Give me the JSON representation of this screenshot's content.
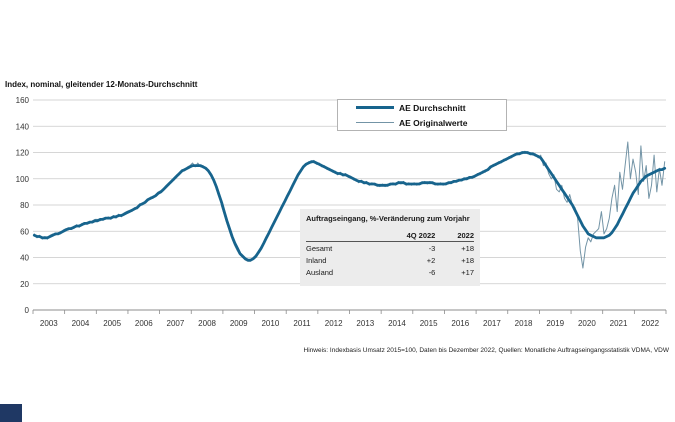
{
  "title": "Index, nominal, gleitender 12-Monats-Durchschnitt",
  "legend": [
    {
      "label": "AE Durchschnitt"
    },
    {
      "label": "AE Originalwerte"
    }
  ],
  "table": {
    "title": "Auftragseingang, %-Veränderung zum Vorjahr",
    "columns": [
      "",
      "4Q 2022",
      "2022"
    ],
    "rows": [
      [
        "Gesamt",
        "-3",
        "+18"
      ],
      [
        "Inland",
        "+2",
        "+18"
      ],
      [
        "Ausland",
        "-6",
        "+17"
      ]
    ]
  },
  "footer": "Hinweis: Indexbasis Umsatz 2015=100, Daten bis Dezember 2022, Quellen: Monatliche Auftragseingangsstatistik VDMA, VDW",
  "colors": {
    "avg": "#17648d",
    "orig": "#7394a6",
    "grid": "#c9c9c9",
    "axis": "#8c8c8c",
    "table_bg": "#ececec",
    "corner": "#1f3864"
  },
  "chart_data": {
    "type": "line",
    "title": "Index, nominal, gleitender 12-Monats-Durchschnitt",
    "ylim": [
      0,
      160
    ],
    "ytick_step": 20,
    "grid": true,
    "legend_position": "top-center",
    "x_years": [
      2003,
      2004,
      2005,
      2006,
      2007,
      2008,
      2009,
      2010,
      2011,
      2012,
      2013,
      2014,
      2015,
      2016,
      2017,
      2018,
      2019,
      2020,
      2021,
      2022
    ],
    "series": [
      {
        "name": "AE Durchschnitt",
        "monthly": [
          57,
          56,
          56,
          55,
          55,
          55,
          56,
          57,
          58,
          58,
          59,
          60,
          61,
          62,
          62,
          63,
          64,
          64,
          65,
          66,
          66,
          67,
          67,
          68,
          68,
          69,
          69,
          70,
          70,
          70,
          71,
          71,
          72,
          72,
          73,
          74,
          75,
          76,
          77,
          78,
          80,
          81,
          82,
          84,
          85,
          86,
          87,
          89,
          90,
          92,
          94,
          96,
          98,
          100,
          102,
          104,
          106,
          107,
          108,
          109,
          110,
          110,
          110,
          110,
          109,
          108,
          106,
          103,
          99,
          94,
          88,
          82,
          75,
          68,
          62,
          56,
          51,
          47,
          43,
          41,
          39,
          38,
          38,
          39,
          41,
          44,
          47,
          51,
          55,
          59,
          63,
          67,
          71,
          75,
          79,
          83,
          87,
          91,
          95,
          99,
          103,
          106,
          109,
          111,
          112,
          113,
          113,
          112,
          111,
          110,
          109,
          108,
          107,
          106,
          105,
          104,
          104,
          103,
          103,
          102,
          101,
          100,
          99,
          98,
          98,
          97,
          97,
          96,
          96,
          96,
          95,
          95,
          95,
          95,
          95,
          96,
          96,
          96,
          97,
          97,
          97,
          96,
          96,
          96,
          96,
          96,
          96,
          97,
          97,
          97,
          97,
          97,
          96,
          96,
          96,
          96,
          96,
          97,
          97,
          98,
          98,
          99,
          99,
          100,
          100,
          101,
          101,
          102,
          103,
          104,
          105,
          106,
          107,
          109,
          110,
          111,
          112,
          113,
          114,
          115,
          116,
          117,
          118,
          119,
          119,
          120,
          120,
          120,
          119,
          119,
          118,
          117,
          116,
          113,
          110,
          107,
          104,
          101,
          98,
          95,
          92,
          89,
          86,
          83,
          80,
          76,
          72,
          68,
          64,
          61,
          58,
          57,
          56,
          55,
          55,
          55,
          55,
          56,
          57,
          59,
          62,
          65,
          69,
          73,
          77,
          81,
          85,
          89,
          92,
          95,
          98,
          100,
          102,
          103,
          104,
          105,
          106,
          107,
          107,
          108
        ]
      },
      {
        "name": "AE Originalwerte",
        "monthly": [
          58,
          55,
          57,
          54,
          56,
          54,
          57,
          58,
          57,
          59,
          58,
          61,
          62,
          61,
          63,
          62,
          65,
          63,
          66,
          65,
          67,
          66,
          68,
          69,
          69,
          68,
          70,
          69,
          71,
          69,
          72,
          70,
          73,
          71,
          74,
          75,
          76,
          75,
          78,
          77,
          81,
          80,
          83,
          83,
          86,
          85,
          88,
          90,
          91,
          91,
          95,
          95,
          99,
          99,
          103,
          103,
          107,
          106,
          109,
          110,
          112,
          109,
          112,
          109,
          110,
          107,
          107,
          102,
          100,
          92,
          89,
          79,
          73,
          66,
          60,
          54,
          49,
          45,
          42,
          40,
          38,
          37,
          37,
          40,
          42,
          43,
          48,
          50,
          56,
          58,
          64,
          66,
          72,
          74,
          80,
          84,
          88,
          90,
          96,
          98,
          104,
          105,
          110,
          110,
          113,
          112,
          114,
          111,
          112,
          109,
          110,
          107,
          108,
          105,
          106,
          103,
          105,
          102,
          104,
          101,
          102,
          99,
          100,
          97,
          99,
          96,
          98,
          95,
          97,
          95,
          96,
          94,
          96,
          94,
          96,
          95,
          97,
          95,
          98,
          96,
          98,
          95,
          97,
          95,
          97,
          95,
          97,
          96,
          98,
          96,
          98,
          96,
          97,
          95,
          97,
          95,
          97,
          96,
          98,
          97,
          99,
          98,
          100,
          99,
          101,
          100,
          102,
          101,
          104,
          103,
          106,
          105,
          108,
          108,
          111,
          110,
          113,
          112,
          115,
          114,
          117,
          116,
          119,
          118,
          120,
          119,
          121,
          119,
          120,
          118,
          119,
          116,
          118,
          110,
          112,
          104,
          100,
          103,
          92,
          90,
          95,
          85,
          82,
          88,
          80,
          78,
          70,
          45,
          32,
          48,
          55,
          52,
          58,
          60,
          62,
          75,
          58,
          62,
          70,
          85,
          95,
          75,
          105,
          92,
          110,
          128,
          100,
          115,
          105,
          88,
          125,
          98,
          110,
          85,
          95,
          118,
          90,
          108,
          95,
          113
        ]
      }
    ]
  }
}
